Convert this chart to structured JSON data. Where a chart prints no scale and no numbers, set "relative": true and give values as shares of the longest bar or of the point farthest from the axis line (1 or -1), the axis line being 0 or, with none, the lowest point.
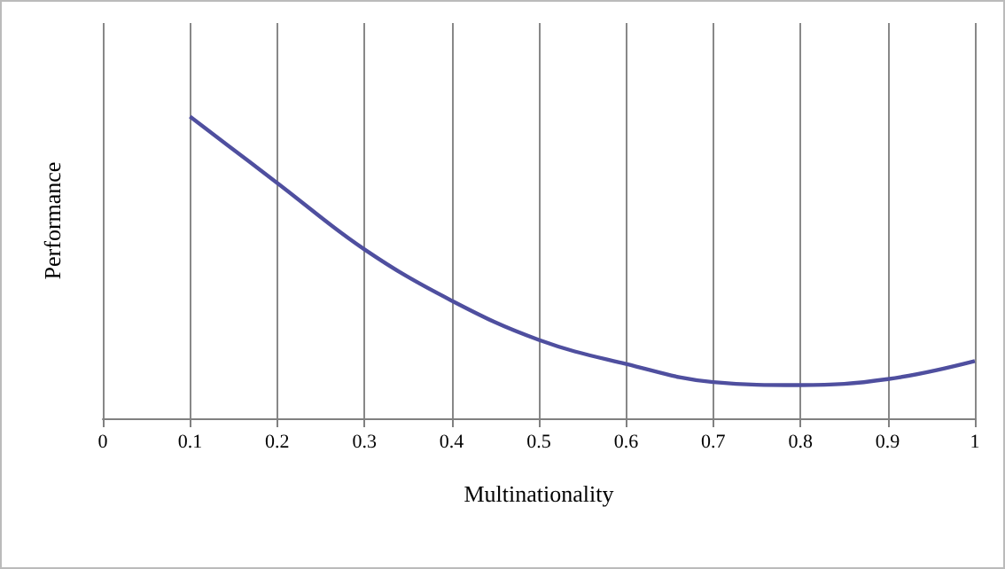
{
  "chart_data": {
    "type": "line",
    "relative": true,
    "xlabel": "Multinationality",
    "ylabel": "Performance",
    "x": [
      0.1,
      0.2,
      0.3,
      0.4,
      0.5,
      0.6,
      0.7,
      0.8,
      0.9,
      1
    ],
    "series": [
      {
        "color": "#4f4f9f",
        "values": [
          1,
          0.78,
          0.56,
          0.39,
          0.26,
          0.18,
          0.12,
          0.11,
          0.13,
          0.19
        ]
      }
    ],
    "xlim": [
      0,
      1
    ],
    "xticks": [
      0,
      0.1,
      0.2,
      0.3,
      0.4,
      0.5,
      0.6,
      0.7,
      0.8,
      0.9,
      1
    ],
    "grid": "x",
    "marker": "none",
    "line_style": "solid"
  }
}
